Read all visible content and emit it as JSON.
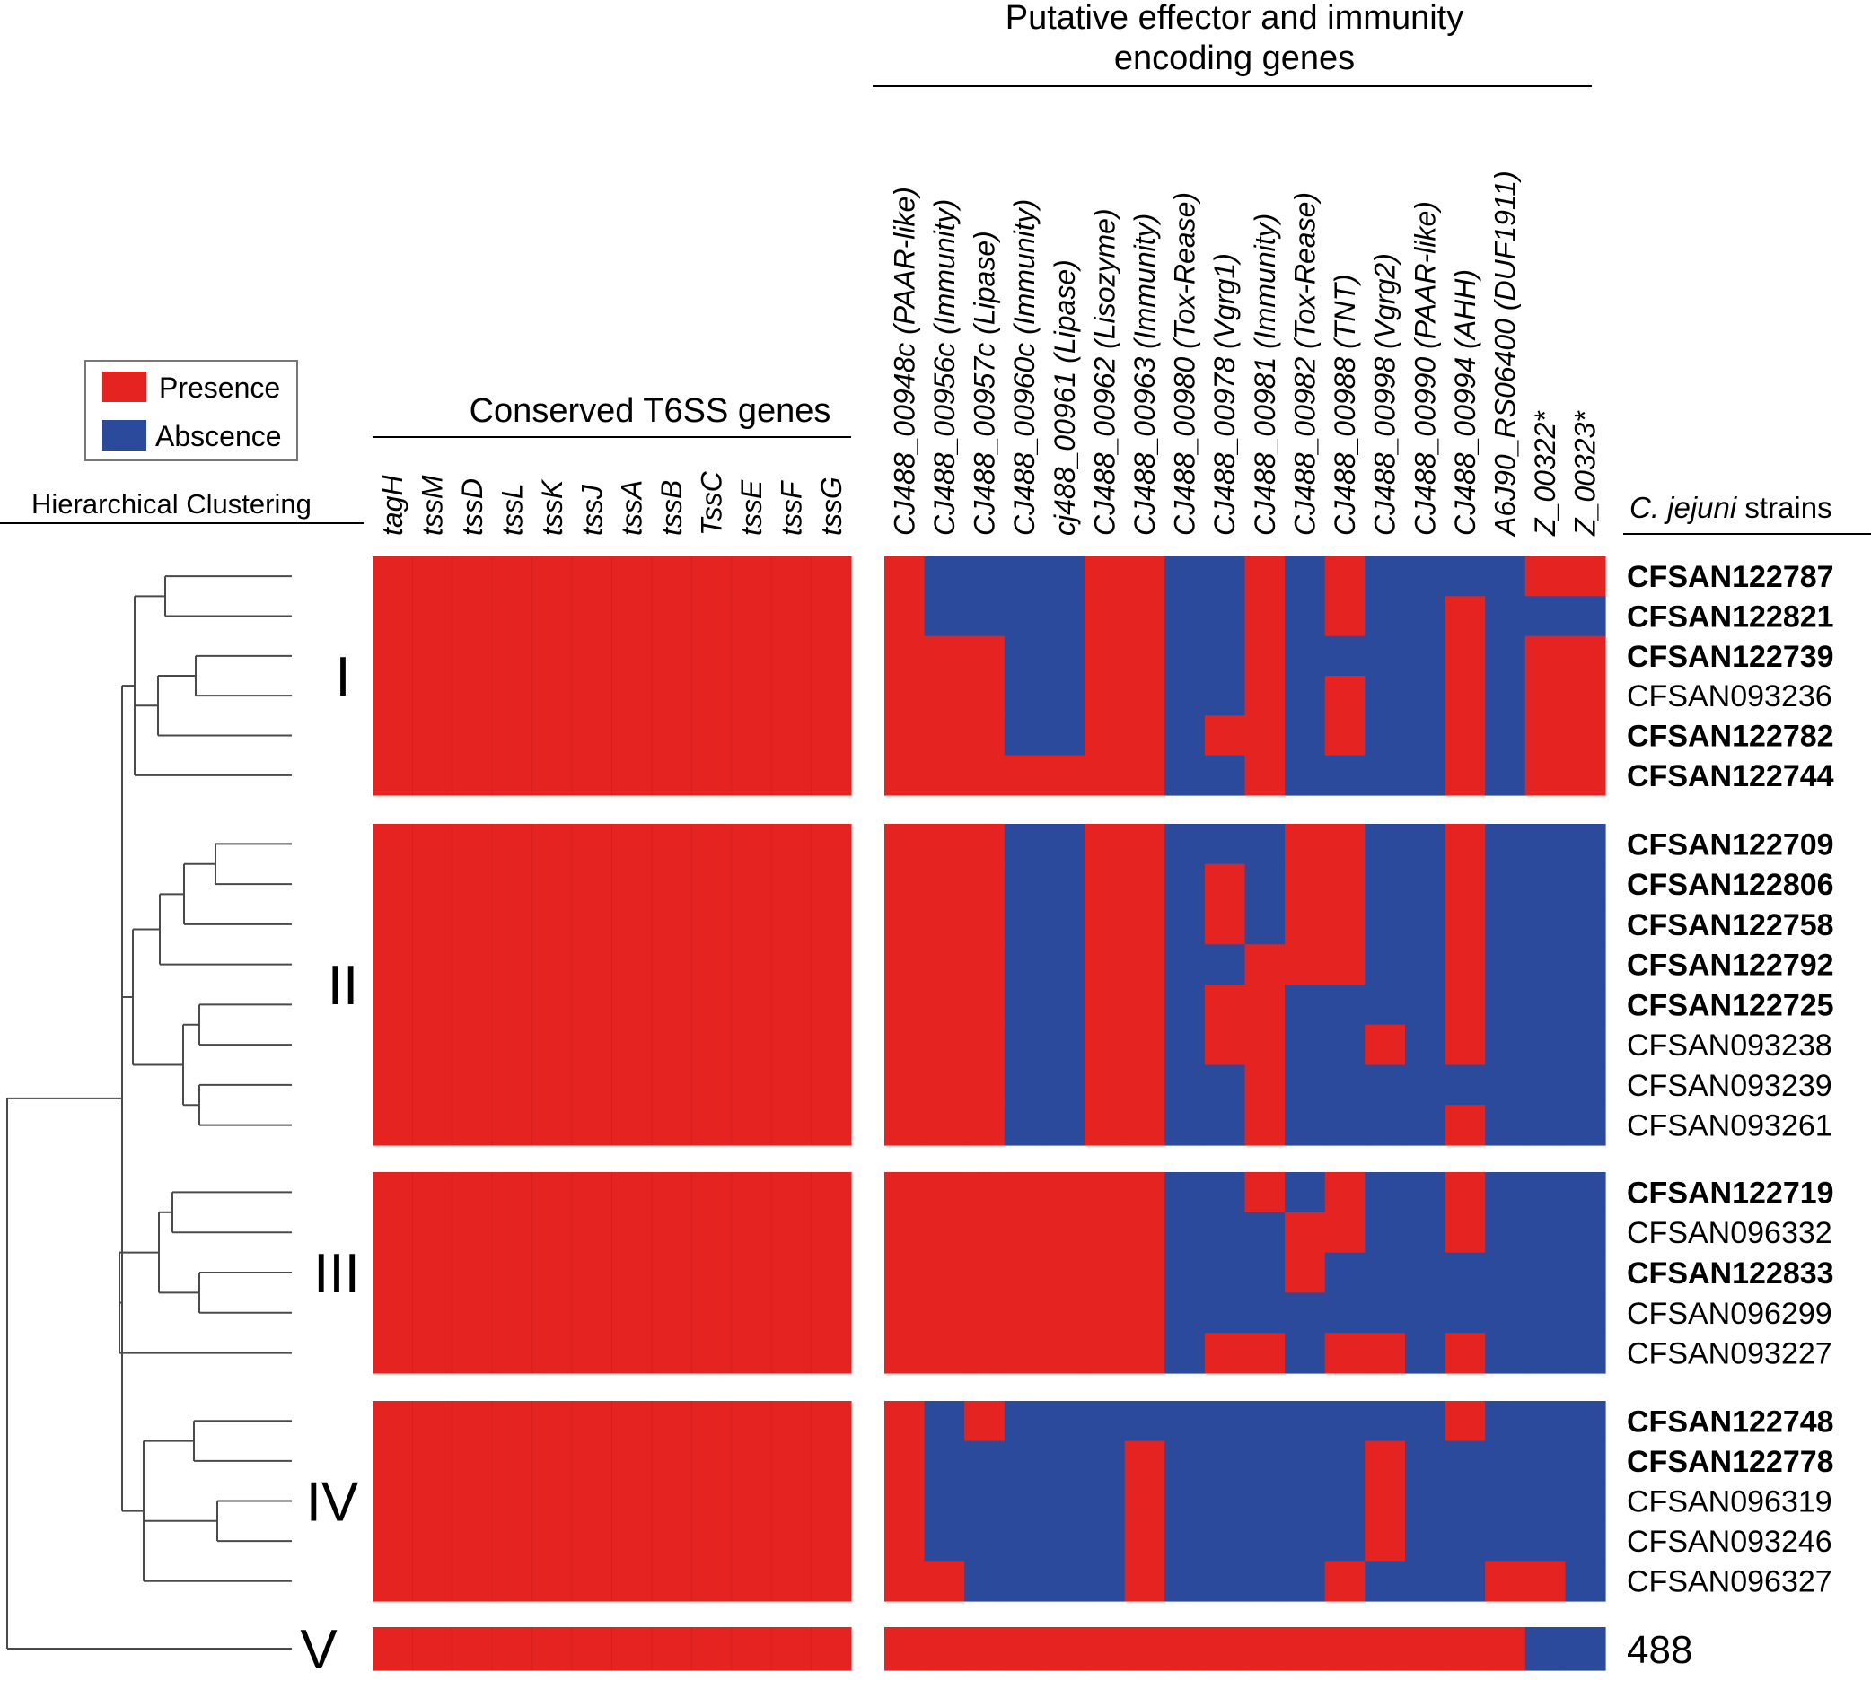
{
  "chart_data": {
    "type": "heatmap",
    "title": "",
    "legend": {
      "placement": "top-left",
      "entries": [
        {
          "label": "Presence",
          "value": 1,
          "color": "#e52421"
        },
        {
          "label": "Abscence",
          "value": 0,
          "color": "#2c4a9c"
        }
      ]
    },
    "dendrogram_label": "Hierarchical Clustering",
    "conserved_header": "Conserved T6SS genes",
    "effector_header_line1": "Putative effector and immunity",
    "effector_header_line2": "encoding genes",
    "strains_header_italic": "C. jejuni",
    "strains_header_rest": " strains",
    "conserved_genes": [
      "tagH",
      "tssM",
      "tssD",
      "tssL",
      "tssK",
      "tssJ",
      "tssA",
      "tssB",
      "TssC",
      "tssE",
      "tssF",
      "tssG"
    ],
    "effector_genes": [
      "CJ488_00948c (PAAR-like)",
      "CJ488_00956c (Immunity)",
      "CJ488_00957c (Lipase)",
      "CJ488_00960c (Immunity)",
      "cj488_00961 (Lipase)",
      "CJ488_00962 (Lisozyme)",
      "CJ488_00963 (Immunity)",
      "CJ488_00980 (Tox-Rease)",
      "CJ488_00978 (Vgrg1)",
      "CJ488_00981 (Immunity)",
      "CJ488_00982 (Tox-Rease)",
      "CJ488_00988 (TNT)",
      "CJ488_00998 (Vgrg2)",
      "CJ488_00990 (PAAR-like)",
      "CJ488_00994 (AHH)",
      "A6J90_RS06400 (DUF1911)",
      "Z_00322*",
      "Z_00323*"
    ],
    "clusters": [
      {
        "label": "I",
        "strains": [
          {
            "name": "CFSAN122787",
            "bold": true,
            "conserved": [
              1,
              1,
              1,
              1,
              1,
              1,
              1,
              1,
              1,
              1,
              1,
              1
            ],
            "effectors": [
              1,
              0,
              0,
              0,
              0,
              1,
              1,
              0,
              0,
              1,
              0,
              1,
              0,
              0,
              0,
              0,
              1,
              1
            ]
          },
          {
            "name": "CFSAN122821",
            "bold": true,
            "conserved": [
              1,
              1,
              1,
              1,
              1,
              1,
              1,
              1,
              1,
              1,
              1,
              1
            ],
            "effectors": [
              1,
              0,
              0,
              0,
              0,
              1,
              1,
              0,
              0,
              1,
              0,
              1,
              0,
              0,
              1,
              0,
              0,
              0
            ]
          },
          {
            "name": "CFSAN122739",
            "bold": true,
            "conserved": [
              1,
              1,
              1,
              1,
              1,
              1,
              1,
              1,
              1,
              1,
              1,
              1
            ],
            "effectors": [
              1,
              1,
              1,
              0,
              0,
              1,
              1,
              0,
              0,
              1,
              0,
              0,
              0,
              0,
              1,
              0,
              1,
              1
            ]
          },
          {
            "name": "CFSAN093236",
            "bold": false,
            "conserved": [
              1,
              1,
              1,
              1,
              1,
              1,
              1,
              1,
              1,
              1,
              1,
              1
            ],
            "effectors": [
              1,
              1,
              1,
              0,
              0,
              1,
              1,
              0,
              0,
              1,
              0,
              1,
              0,
              0,
              1,
              0,
              1,
              1
            ]
          },
          {
            "name": "CFSAN122782",
            "bold": true,
            "conserved": [
              1,
              1,
              1,
              1,
              1,
              1,
              1,
              1,
              1,
              1,
              1,
              1
            ],
            "effectors": [
              1,
              1,
              1,
              0,
              0,
              1,
              1,
              0,
              1,
              1,
              0,
              1,
              0,
              0,
              1,
              0,
              1,
              1
            ]
          },
          {
            "name": "CFSAN122744",
            "bold": true,
            "conserved": [
              1,
              1,
              1,
              1,
              1,
              1,
              1,
              1,
              1,
              1,
              1,
              1
            ],
            "effectors": [
              1,
              1,
              1,
              1,
              1,
              1,
              1,
              0,
              0,
              1,
              0,
              0,
              0,
              0,
              1,
              0,
              1,
              1
            ]
          }
        ]
      },
      {
        "label": "II",
        "strains": [
          {
            "name": "CFSAN122709",
            "bold": true,
            "conserved": [
              1,
              1,
              1,
              1,
              1,
              1,
              1,
              1,
              1,
              1,
              1,
              1
            ],
            "effectors": [
              1,
              1,
              1,
              0,
              0,
              1,
              1,
              0,
              0,
              0,
              1,
              1,
              0,
              0,
              1,
              0,
              0,
              0
            ]
          },
          {
            "name": "CFSAN122806",
            "bold": true,
            "conserved": [
              1,
              1,
              1,
              1,
              1,
              1,
              1,
              1,
              1,
              1,
              1,
              1
            ],
            "effectors": [
              1,
              1,
              1,
              0,
              0,
              1,
              1,
              0,
              1,
              0,
              1,
              1,
              0,
              0,
              1,
              0,
              0,
              0
            ]
          },
          {
            "name": "CFSAN122758",
            "bold": true,
            "conserved": [
              1,
              1,
              1,
              1,
              1,
              1,
              1,
              1,
              1,
              1,
              1,
              1
            ],
            "effectors": [
              1,
              1,
              1,
              0,
              0,
              1,
              1,
              0,
              1,
              0,
              1,
              1,
              0,
              0,
              1,
              0,
              0,
              0
            ]
          },
          {
            "name": "CFSAN122792",
            "bold": true,
            "conserved": [
              1,
              1,
              1,
              1,
              1,
              1,
              1,
              1,
              1,
              1,
              1,
              1
            ],
            "effectors": [
              1,
              1,
              1,
              0,
              0,
              1,
              1,
              0,
              0,
              1,
              1,
              1,
              0,
              0,
              1,
              0,
              0,
              0
            ]
          },
          {
            "name": "CFSAN122725",
            "bold": true,
            "conserved": [
              1,
              1,
              1,
              1,
              1,
              1,
              1,
              1,
              1,
              1,
              1,
              1
            ],
            "effectors": [
              1,
              1,
              1,
              0,
              0,
              1,
              1,
              0,
              1,
              1,
              0,
              0,
              0,
              0,
              1,
              0,
              0,
              0
            ]
          },
          {
            "name": "CFSAN093238",
            "bold": false,
            "conserved": [
              1,
              1,
              1,
              1,
              1,
              1,
              1,
              1,
              1,
              1,
              1,
              1
            ],
            "effectors": [
              1,
              1,
              1,
              0,
              0,
              1,
              1,
              0,
              1,
              1,
              0,
              0,
              1,
              0,
              1,
              0,
              0,
              0
            ]
          },
          {
            "name": "CFSAN093239",
            "bold": false,
            "conserved": [
              1,
              1,
              1,
              1,
              1,
              1,
              1,
              1,
              1,
              1,
              1,
              1
            ],
            "effectors": [
              1,
              1,
              1,
              0,
              0,
              1,
              1,
              0,
              0,
              1,
              0,
              0,
              0,
              0,
              0,
              0,
              0,
              0
            ]
          },
          {
            "name": "CFSAN093261",
            "bold": false,
            "conserved": [
              1,
              1,
              1,
              1,
              1,
              1,
              1,
              1,
              1,
              1,
              1,
              1
            ],
            "effectors": [
              1,
              1,
              1,
              0,
              0,
              1,
              1,
              0,
              0,
              1,
              0,
              0,
              0,
              0,
              1,
              0,
              0,
              0
            ]
          }
        ]
      },
      {
        "label": "III",
        "strains": [
          {
            "name": "CFSAN122719",
            "bold": true,
            "conserved": [
              1,
              1,
              1,
              1,
              1,
              1,
              1,
              1,
              1,
              1,
              1,
              1
            ],
            "effectors": [
              1,
              1,
              1,
              1,
              1,
              1,
              1,
              0,
              0,
              1,
              0,
              1,
              0,
              0,
              1,
              0,
              0,
              0
            ]
          },
          {
            "name": "CFSAN096332",
            "bold": false,
            "conserved": [
              1,
              1,
              1,
              1,
              1,
              1,
              1,
              1,
              1,
              1,
              1,
              1
            ],
            "effectors": [
              1,
              1,
              1,
              1,
              1,
              1,
              1,
              0,
              0,
              0,
              1,
              1,
              0,
              0,
              1,
              0,
              0,
              0
            ]
          },
          {
            "name": "CFSAN122833",
            "bold": true,
            "conserved": [
              1,
              1,
              1,
              1,
              1,
              1,
              1,
              1,
              1,
              1,
              1,
              1
            ],
            "effectors": [
              1,
              1,
              1,
              1,
              1,
              1,
              1,
              0,
              0,
              0,
              1,
              0,
              0,
              0,
              0,
              0,
              0,
              0
            ]
          },
          {
            "name": "CFSAN096299",
            "bold": false,
            "conserved": [
              1,
              1,
              1,
              1,
              1,
              1,
              1,
              1,
              1,
              1,
              1,
              1
            ],
            "effectors": [
              1,
              1,
              1,
              1,
              1,
              1,
              1,
              0,
              0,
              0,
              0,
              0,
              0,
              0,
              0,
              0,
              0,
              0
            ]
          },
          {
            "name": "CFSAN093227",
            "bold": false,
            "conserved": [
              1,
              1,
              1,
              1,
              1,
              1,
              1,
              1,
              1,
              1,
              1,
              1
            ],
            "effectors": [
              1,
              1,
              1,
              1,
              1,
              1,
              1,
              0,
              1,
              1,
              0,
              1,
              1,
              0,
              1,
              0,
              0,
              0
            ]
          }
        ]
      },
      {
        "label": "IV",
        "strains": [
          {
            "name": "CFSAN122748",
            "bold": true,
            "conserved": [
              1,
              1,
              1,
              1,
              1,
              1,
              1,
              1,
              1,
              1,
              1,
              1
            ],
            "effectors": [
              1,
              0,
              1,
              0,
              0,
              0,
              0,
              0,
              0,
              0,
              0,
              0,
              0,
              0,
              1,
              0,
              0,
              0
            ]
          },
          {
            "name": "CFSAN122778",
            "bold": true,
            "conserved": [
              1,
              1,
              1,
              1,
              1,
              1,
              1,
              1,
              1,
              1,
              1,
              1
            ],
            "effectors": [
              1,
              0,
              0,
              0,
              0,
              0,
              1,
              0,
              0,
              0,
              0,
              0,
              1,
              0,
              0,
              0,
              0,
              0
            ]
          },
          {
            "name": "CFSAN096319",
            "bold": false,
            "conserved": [
              1,
              1,
              1,
              1,
              1,
              1,
              1,
              1,
              1,
              1,
              1,
              1
            ],
            "effectors": [
              1,
              0,
              0,
              0,
              0,
              0,
              1,
              0,
              0,
              0,
              0,
              0,
              1,
              0,
              0,
              0,
              0,
              0
            ]
          },
          {
            "name": "CFSAN093246",
            "bold": false,
            "conserved": [
              1,
              1,
              1,
              1,
              1,
              1,
              1,
              1,
              1,
              1,
              1,
              1
            ],
            "effectors": [
              1,
              0,
              0,
              0,
              0,
              0,
              1,
              0,
              0,
              0,
              0,
              0,
              1,
              0,
              0,
              0,
              0,
              0
            ]
          },
          {
            "name": "CFSAN096327",
            "bold": false,
            "conserved": [
              1,
              1,
              1,
              1,
              1,
              1,
              1,
              1,
              1,
              1,
              1,
              1
            ],
            "effectors": [
              1,
              1,
              0,
              0,
              0,
              0,
              1,
              0,
              0,
              0,
              0,
              1,
              0,
              0,
              0,
              1,
              1,
              0
            ]
          }
        ]
      },
      {
        "label": "V",
        "strains": [
          {
            "name": "488",
            "bold": false,
            "conserved": [
              1,
              1,
              1,
              1,
              1,
              1,
              1,
              1,
              1,
              1,
              1,
              1
            ],
            "effectors": [
              1,
              1,
              1,
              1,
              1,
              1,
              1,
              1,
              1,
              1,
              1,
              1,
              1,
              1,
              1,
              1,
              0,
              0
            ]
          }
        ]
      }
    ]
  }
}
